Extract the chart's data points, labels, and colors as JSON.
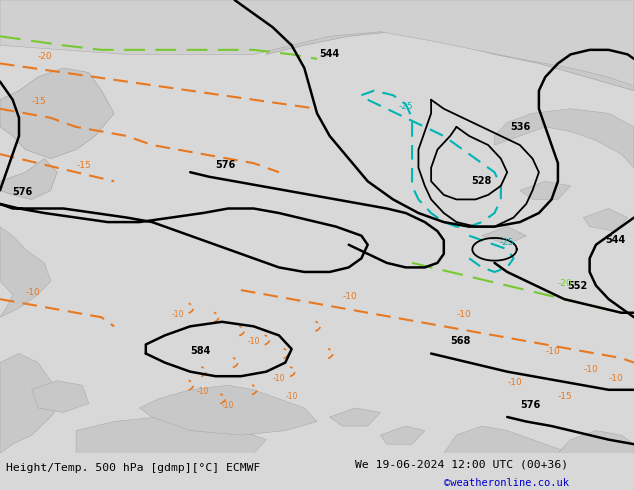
{
  "title_left": "Height/Temp. 500 hPa [gdmp][°C] ECMWF",
  "title_right": "We 19-06-2024 12:00 UTC (00+36)",
  "credit": "©weatheronline.co.uk",
  "fig_width": 6.34,
  "fig_height": 4.9,
  "dpi": 100,
  "map_bg": "#b4dfa0",
  "land_color": "#c8c8c8",
  "land_edge": "#a0a0a0",
  "black_lw": 1.8,
  "thin_lw": 1.3,
  "orange": "#e87820",
  "cyan": "#00b4b4",
  "green_dash": "#78c832",
  "bottom_bg": "#ffffff",
  "credit_color": "#0000cc"
}
